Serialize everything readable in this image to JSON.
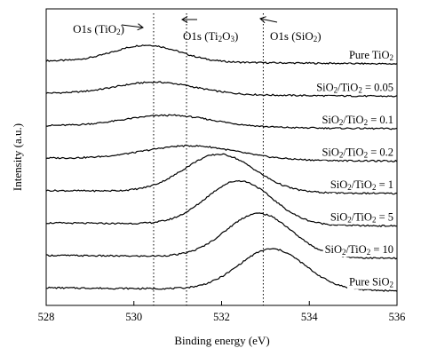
{
  "chart_data": {
    "type": "line",
    "xlabel": "Binding energy (eV)",
    "ylabel": "Intensity (a.u.)",
    "xlim": [
      536,
      528
    ],
    "x_reversed": true,
    "x_ticks": [
      "528",
      "530",
      "532",
      "534",
      "536"
    ],
    "y_ticks_shown": false,
    "grid": false,
    "reference_lines": [
      {
        "x": 530.45,
        "label": "O1s (TiO",
        "sub": "2",
        "tail": ")",
        "style": "dotted"
      },
      {
        "x": 531.2,
        "label": "O1s (Ti",
        "sub": "2",
        "mid": "O",
        "sub2": "3",
        "tail": ")",
        "style": "dotted"
      },
      {
        "x": 532.95,
        "label": "O1s (SiO",
        "sub": "2",
        "tail": ")",
        "style": "dotted"
      }
    ],
    "series": [
      {
        "name": "Pure TiO",
        "sub": "2",
        "tail": "",
        "center": 530.3,
        "sigma": 0.75,
        "amp": 0.55,
        "base_hi": 0.1,
        "base_lo": 0.0,
        "level": 0.0
      },
      {
        "name": "SiO",
        "sub": "2",
        "mid": "/TiO",
        "sub2": "2",
        "tail": " = 0.05",
        "center": 530.5,
        "sigma": 0.9,
        "amp": 0.4,
        "base_hi": 0.1,
        "base_lo": 0.0,
        "level": 1.0
      },
      {
        "name": "SiO",
        "sub": "2",
        "mid": "/TiO",
        "sub2": "2",
        "tail": " = 0.1",
        "center": 530.8,
        "sigma": 1.0,
        "amp": 0.38,
        "base_hi": 0.1,
        "base_lo": 0.0,
        "level": 2.0
      },
      {
        "name": "SiO",
        "sub": "2",
        "mid": "/TiO",
        "sub2": "2",
        "tail": " = 0.2",
        "center": 531.3,
        "sigma": 1.05,
        "amp": 0.45,
        "base_hi": 0.1,
        "base_lo": 0.0,
        "level": 3.0
      },
      {
        "name": "SiO",
        "sub": "2",
        "mid": "/TiO",
        "sub2": "2",
        "tail": " = 1",
        "center": 531.95,
        "sigma": 0.8,
        "amp": 1.25,
        "base_hi": 0.1,
        "base_lo": 0.0,
        "level": 4.0
      },
      {
        "name": "SiO",
        "sub": "2",
        "mid": "/TiO",
        "sub2": "2",
        "tail": " = 5",
        "center": 532.4,
        "sigma": 0.75,
        "amp": 1.45,
        "base_hi": 0.1,
        "base_lo": 0.0,
        "level": 5.0
      },
      {
        "name": "SiO",
        "sub": "2",
        "mid": "/TiO",
        "sub2": "2",
        "tail": " = 10",
        "center": 532.85,
        "sigma": 0.75,
        "amp": 1.45,
        "base_hi": 0.1,
        "base_lo": 0.0,
        "level": 6.0
      },
      {
        "name": "Pure SiO",
        "sub": "2",
        "tail": "",
        "center": 533.15,
        "sigma": 0.75,
        "amp": 1.35,
        "base_hi": 0.1,
        "base_lo": 0.0,
        "level": 7.0
      }
    ]
  }
}
